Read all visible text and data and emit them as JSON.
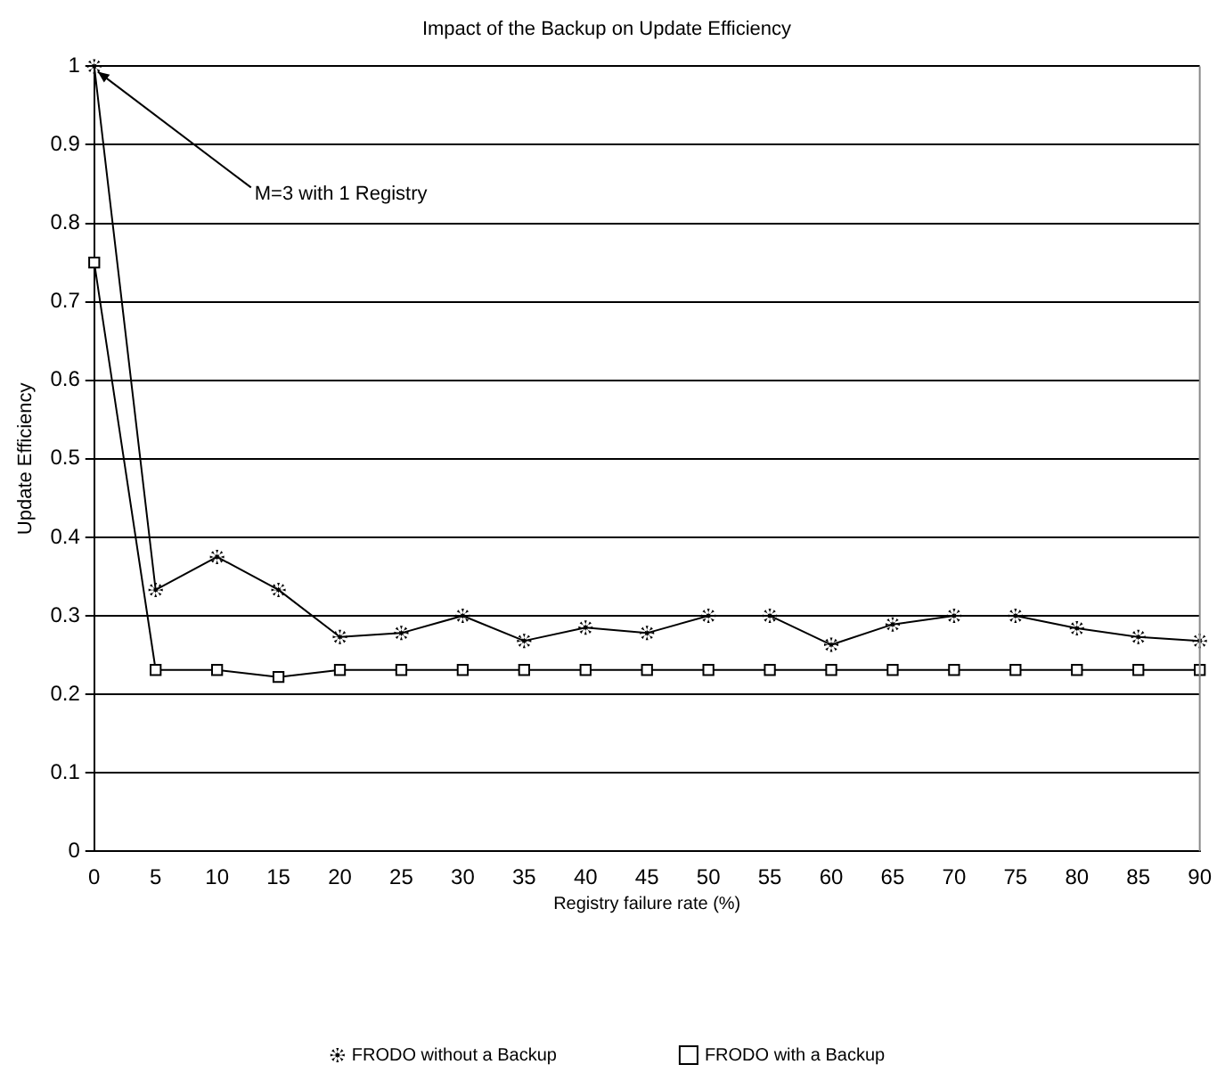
{
  "chart_data": {
    "type": "line",
    "title": "Impact of the Backup on Update Efficiency",
    "xlabel": "Registry failure rate (%)",
    "ylabel": "Update Efficiency",
    "categories": [
      "0",
      "5",
      "10",
      "15",
      "20",
      "25",
      "30",
      "35",
      "40",
      "45",
      "50",
      "55",
      "60",
      "65",
      "70",
      "75",
      "80",
      "85",
      "90"
    ],
    "series": [
      {
        "name": "FRODO without a Backup",
        "color": "#000000",
        "marker": "star",
        "values": [
          1,
          0.333,
          0.375,
          0.333,
          0.273,
          0.278,
          0.3,
          0.268,
          0.285,
          0.278,
          0.3,
          0.3,
          0.263,
          0.289,
          0.3,
          0.3,
          0.284,
          0.273,
          0.268
        ]
      },
      {
        "name": "FRODO with a Backup",
        "color": "#000000",
        "marker": "square",
        "values": [
          0.75,
          0.231,
          0.231,
          0.222,
          0.231,
          0.231,
          0.231,
          0.231,
          0.231,
          0.231,
          0.231,
          0.231,
          0.231,
          0.231,
          0.231,
          0.231,
          0.231,
          0.231,
          0.231
        ]
      }
    ],
    "ylim": [
      0,
      1
    ],
    "yticks": [
      0,
      0.1,
      0.2,
      0.3,
      0.4,
      0.5,
      0.6,
      0.7,
      0.8,
      0.9,
      1
    ],
    "grid": "y",
    "legend": "bottom",
    "line_style": "solid",
    "annotations": [
      {
        "text": "M=3 with 1 Registry",
        "x": "0",
        "y": 1
      }
    ]
  }
}
